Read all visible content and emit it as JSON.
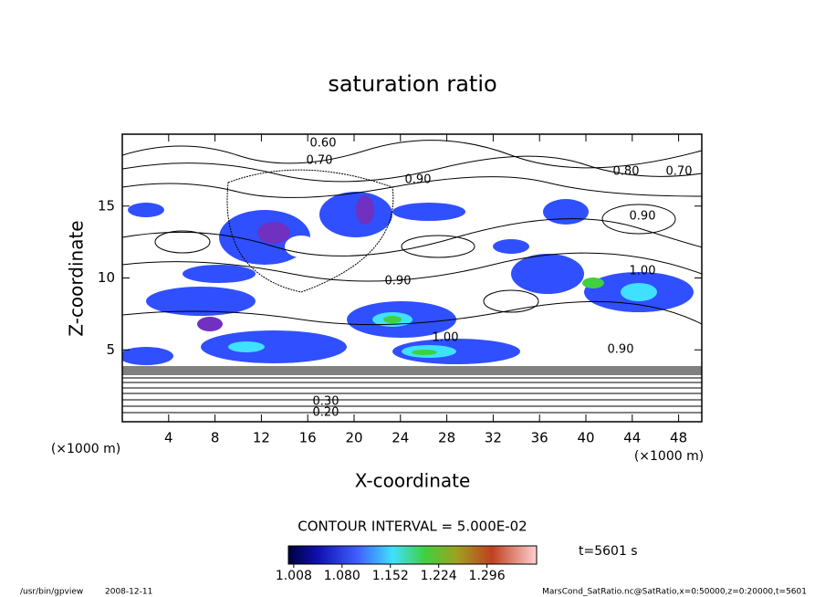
{
  "chart_data": {
    "type": "contour",
    "title": "saturation ratio",
    "x_label": "X-coordinate",
    "y_label": "Z-coordinate",
    "x_unit": "(×1000 m)",
    "y_unit": "(×1000 m)",
    "xlim": [
      0,
      50
    ],
    "ylim": [
      0,
      20
    ],
    "xticks": [
      4,
      8,
      12,
      16,
      20,
      24,
      28,
      32,
      36,
      40,
      44,
      48
    ],
    "yticks": [
      5,
      10,
      15
    ],
    "contour_labels": [
      "0.60",
      "0.70",
      "0.90",
      "0.80",
      "0.70",
      "0.90",
      "1.00",
      "0.90",
      "1.00",
      "0.90",
      "0.30",
      "0.20"
    ],
    "contour_interval": "CONTOUR INTERVAL = 5.000E-02",
    "colorbar_lim": [
      1.0,
      1.37
    ],
    "colorbar_ticks": [
      1.008,
      {
        "value": 1.08,
        "label": "1.080"
      },
      1.152,
      1.224,
      1.296
    ],
    "time_label": "t=5601 s",
    "footer_program": "/usr/bin/gpview",
    "footer_date": "2008-12-11",
    "footer_source": "MarsCond_SatRatio.nc@SatRatio,x=0:50000,z=0:20000,t=5601"
  }
}
